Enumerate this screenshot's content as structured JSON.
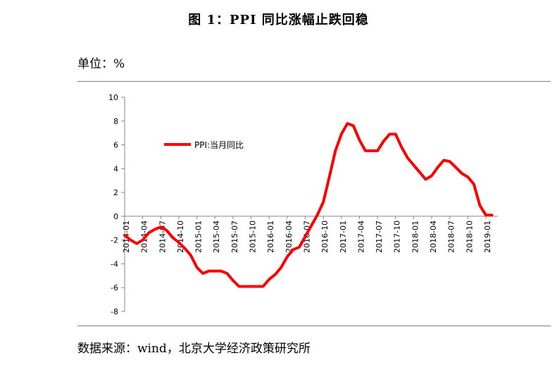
{
  "figure": {
    "title": "图 1：PPI 同比涨幅止跌回稳",
    "unit_label": "单位：%",
    "source": "数据来源：wind，北京大学经济政策研究所"
  },
  "chart_data": {
    "type": "line",
    "series": [
      {
        "name": "PPI:当月同比",
        "color": "#ff0000",
        "x": [
          "2014-01",
          "2014-02",
          "2014-03",
          "2014-04",
          "2014-05",
          "2014-06",
          "2014-07",
          "2014-08",
          "2014-09",
          "2014-10",
          "2014-11",
          "2014-12",
          "2015-01",
          "2015-02",
          "2015-03",
          "2015-04",
          "2015-05",
          "2015-06",
          "2015-07",
          "2015-08",
          "2015-09",
          "2015-10",
          "2015-11",
          "2015-12",
          "2016-01",
          "2016-02",
          "2016-03",
          "2016-04",
          "2016-05",
          "2016-06",
          "2016-07",
          "2016-08",
          "2016-09",
          "2016-10",
          "2016-11",
          "2016-12",
          "2017-01",
          "2017-02",
          "2017-03",
          "2017-04",
          "2017-05",
          "2017-06",
          "2017-07",
          "2017-08",
          "2017-09",
          "2017-10",
          "2017-11",
          "2017-12",
          "2018-01",
          "2018-02",
          "2018-03",
          "2018-04",
          "2018-05",
          "2018-06",
          "2018-07",
          "2018-08",
          "2018-09",
          "2018-10",
          "2018-11",
          "2018-12",
          "2019-01",
          "2019-02"
        ],
        "values": [
          -1.6,
          -2.0,
          -2.3,
          -2.0,
          -1.4,
          -1.1,
          -0.9,
          -1.2,
          -1.8,
          -2.2,
          -2.7,
          -3.3,
          -4.3,
          -4.8,
          -4.6,
          -4.6,
          -4.6,
          -4.8,
          -5.4,
          -5.9,
          -5.9,
          -5.9,
          -5.9,
          -5.9,
          -5.3,
          -4.9,
          -4.3,
          -3.4,
          -2.8,
          -2.6,
          -1.7,
          -0.8,
          0.1,
          1.2,
          3.3,
          5.5,
          6.9,
          7.8,
          7.6,
          6.4,
          5.5,
          5.5,
          5.5,
          6.3,
          6.9,
          6.9,
          5.8,
          4.9,
          4.3,
          3.7,
          3.1,
          3.4,
          4.1,
          4.7,
          4.6,
          4.1,
          3.6,
          3.3,
          2.7,
          0.9,
          0.1,
          0.1
        ]
      }
    ],
    "x_tick_labels": [
      "2014-01",
      "2014-04",
      "2014-07",
      "2014-10",
      "2015-01",
      "2015-04",
      "2015-07",
      "2015-10",
      "2016-01",
      "2016-04",
      "2016-07",
      "2016-10",
      "2017-01",
      "2017-04",
      "2017-07",
      "2017-10",
      "2018-01",
      "2018-04",
      "2018-07",
      "2018-10",
      "2019-01"
    ],
    "y_ticks": [
      -8,
      -6,
      -4,
      -2,
      0,
      2,
      4,
      6,
      8,
      10
    ],
    "ylim": [
      -8,
      10
    ],
    "grid": false,
    "legend_position": "upper-left",
    "title": "图 1：PPI 同比涨幅止跌回稳",
    "xlabel": "",
    "ylabel": ""
  }
}
